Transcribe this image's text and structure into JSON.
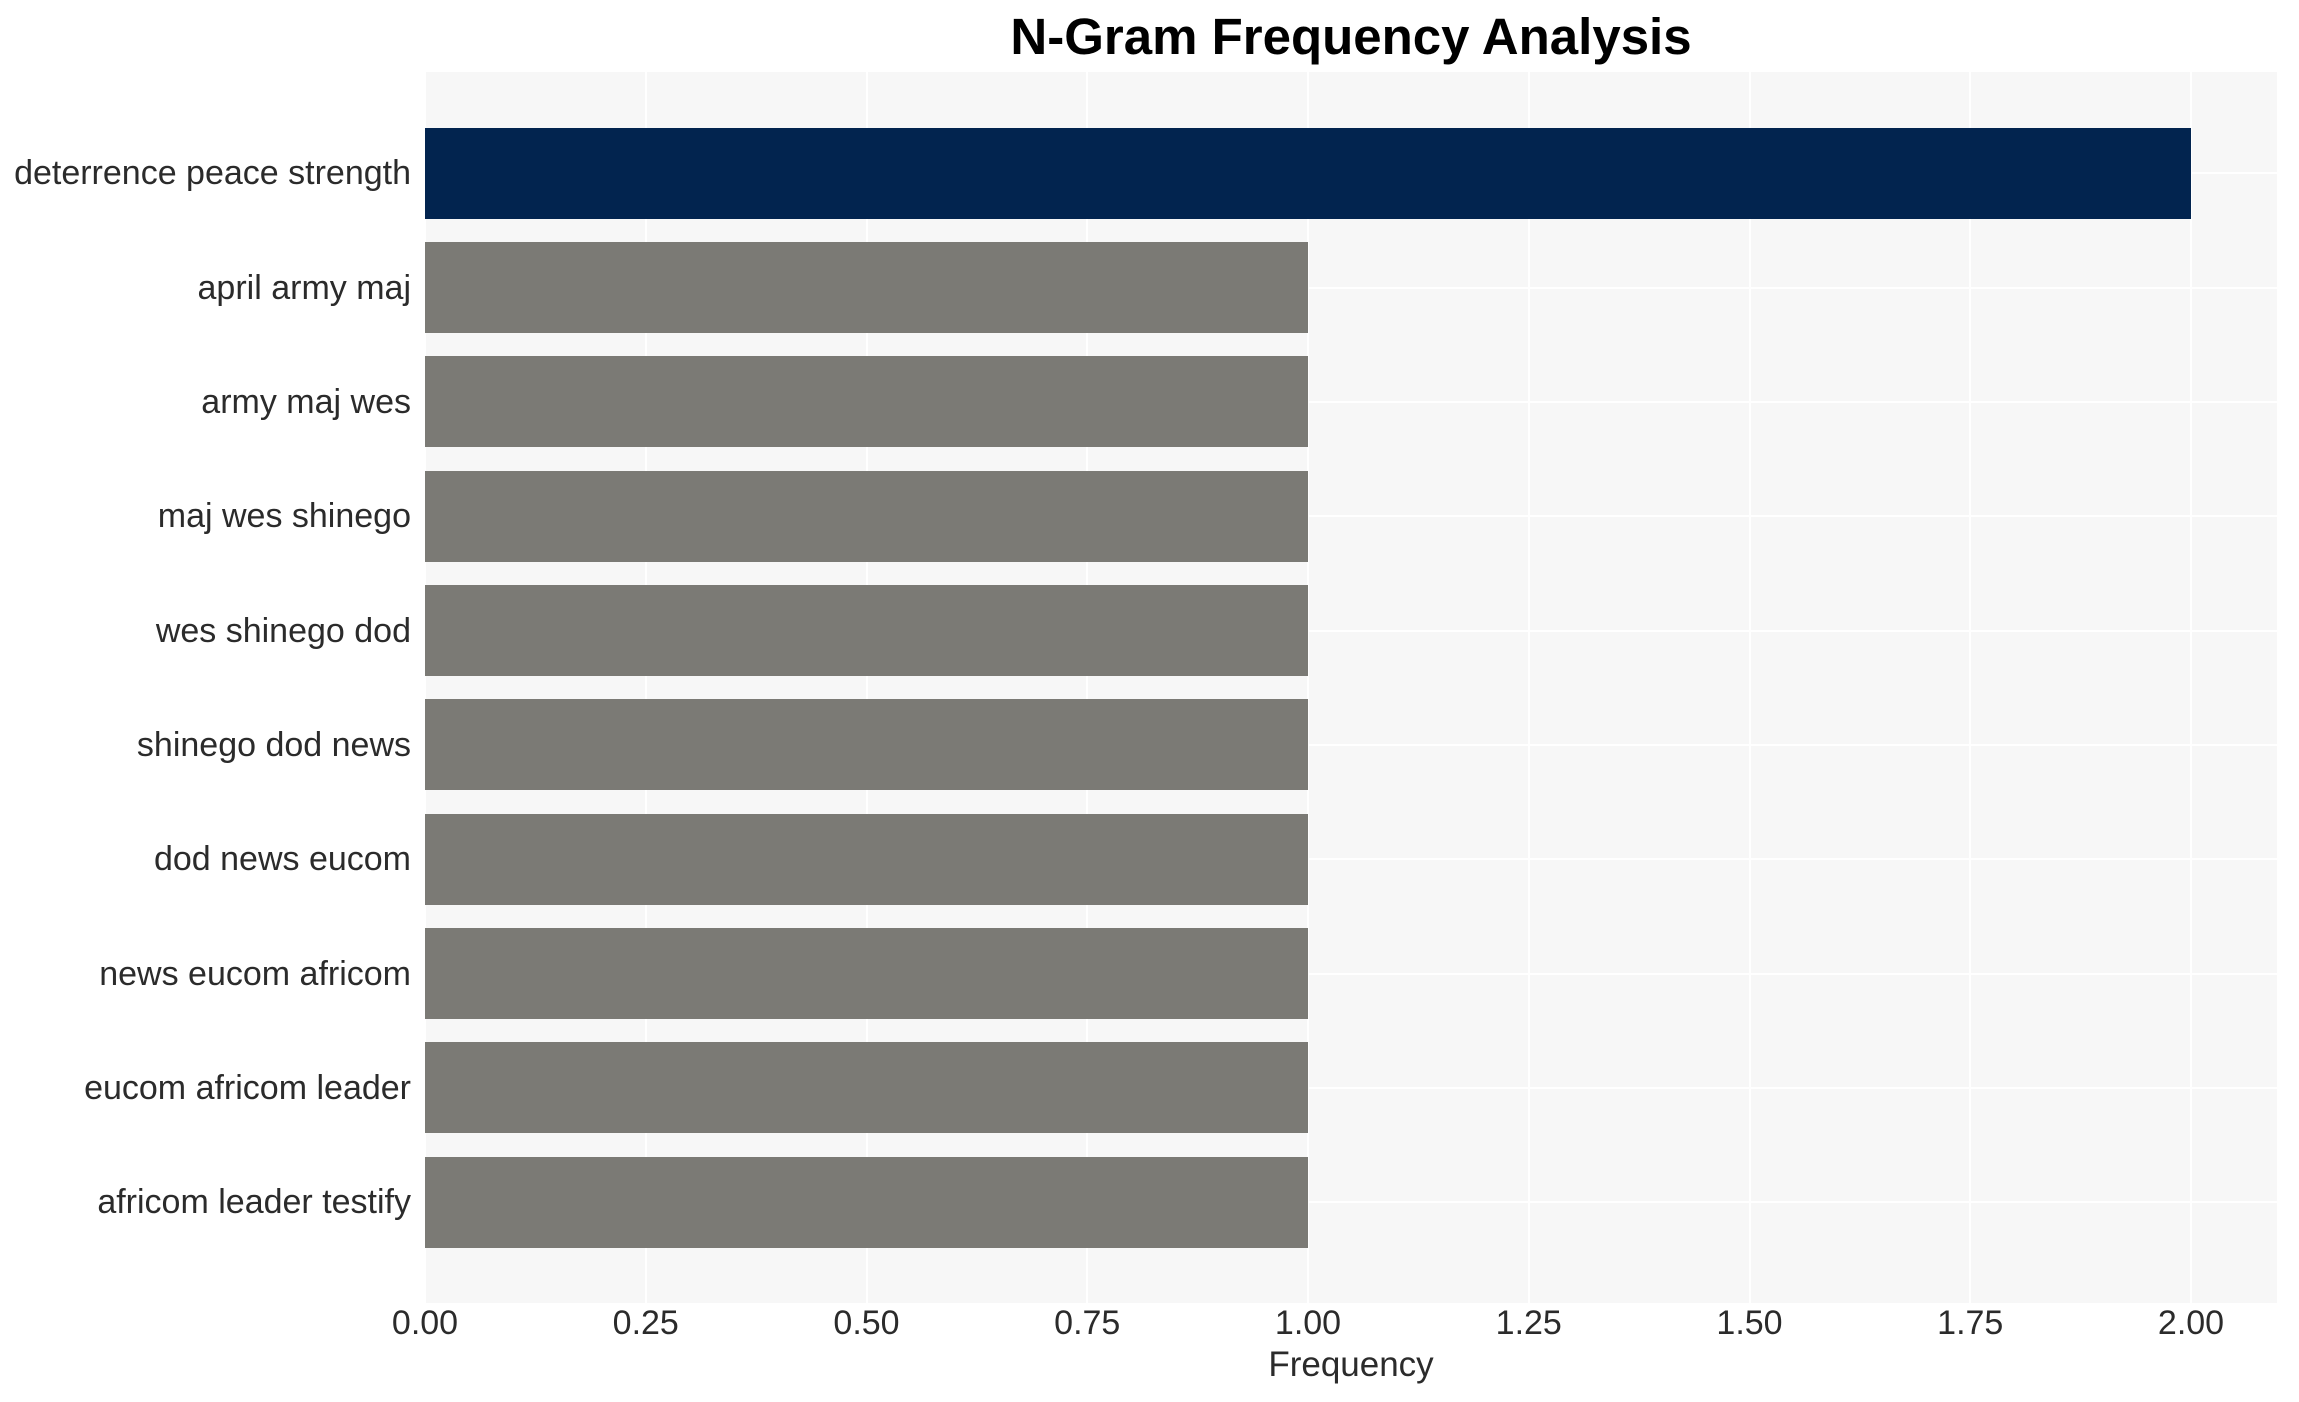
{
  "chart_data": {
    "type": "bar",
    "orientation": "horizontal",
    "title": "N-Gram Frequency Analysis",
    "xlabel": "Frequency",
    "ylabel": "",
    "categories": [
      "deterrence peace strength",
      "april army maj",
      "army maj wes",
      "maj wes shinego",
      "wes shinego dod",
      "shinego dod news",
      "dod news eucom",
      "news eucom africom",
      "eucom africom leader",
      "africom leader testify"
    ],
    "values": [
      2,
      1,
      1,
      1,
      1,
      1,
      1,
      1,
      1,
      1
    ],
    "xlim": [
      0,
      2.1
    ],
    "xticks": [
      0,
      0.25,
      0.5,
      0.75,
      1.0,
      1.25,
      1.5,
      1.75,
      2.0
    ],
    "xtick_labels": [
      "0.00",
      "0.25",
      "0.50",
      "0.75",
      "1.00",
      "1.25",
      "1.50",
      "1.75",
      "2.00"
    ],
    "grid": true,
    "legend": false,
    "gridline_axes": "both",
    "colors": {
      "highlight_bar": "#02244f",
      "default_bar": "#7b7a75",
      "plot_background": "#f7f7f7",
      "gridline": "#ffffff",
      "tick_text": "#2b2b2b",
      "title_text": "#000000"
    },
    "bar_colors": [
      "#02244f",
      "#7b7a75",
      "#7b7a75",
      "#7b7a75",
      "#7b7a75",
      "#7b7a75",
      "#7b7a75",
      "#7b7a75",
      "#7b7a75",
      "#7b7a75"
    ]
  }
}
